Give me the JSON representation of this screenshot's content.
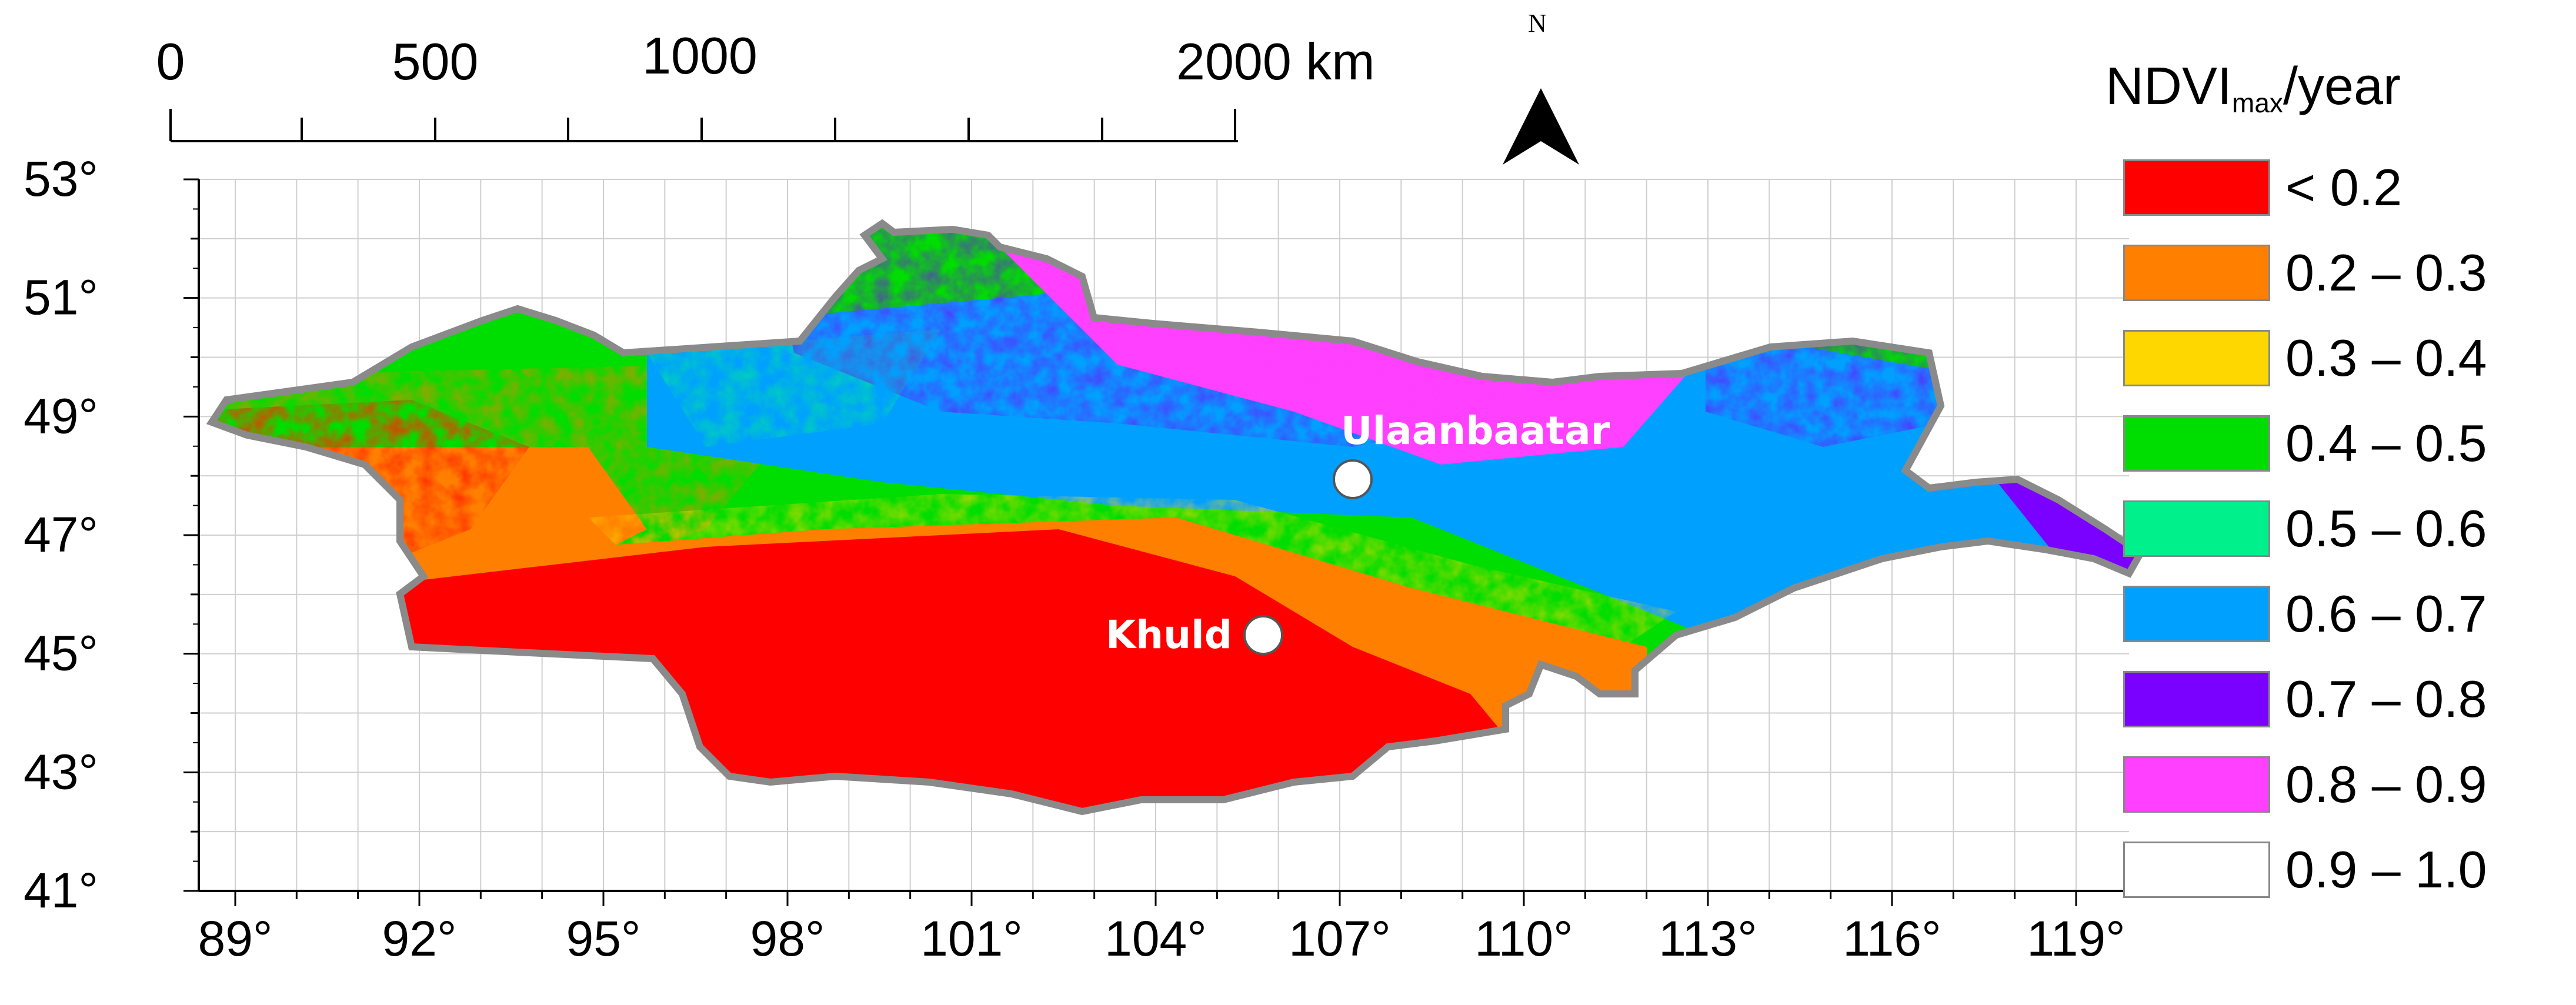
{
  "scale_bar": {
    "labels": [
      "0",
      "500",
      "1000",
      "2000 km"
    ]
  },
  "north_arrow": {
    "letter": "N"
  },
  "lat_labels": [
    "53°",
    "51°",
    "49°",
    "47°",
    "45°",
    "43°",
    "41°"
  ],
  "lon_labels": [
    "89°",
    "92°",
    "95°",
    "98°",
    "101°",
    "104°",
    "107°",
    "110°",
    "113°",
    "116°",
    "119°"
  ],
  "cities": [
    {
      "name": "Ulaanbaatar",
      "lon": 107.0,
      "lat": 47.9
    },
    {
      "name": "Khuld",
      "lon": 105.6,
      "lat": 45.2
    }
  ],
  "legend": {
    "title_main": "NDVI",
    "title_sub": "max",
    "title_suffix": "/year",
    "items": [
      {
        "label": "<  0.2",
        "color": "#ff0000"
      },
      {
        "label": "0.2 – 0.3",
        "color": "#ff7f00"
      },
      {
        "label": "0.3 – 0.4",
        "color": "#ffd700"
      },
      {
        "label": "0.4 – 0.5",
        "color": "#00dd00"
      },
      {
        "label": "0.5 – 0.6",
        "color": "#00f08c"
      },
      {
        "label": "0.6 – 0.7",
        "color": "#00a0ff"
      },
      {
        "label": "0.7 – 0.8",
        "color": "#7a00ff"
      },
      {
        "label": "0.8 – 0.9",
        "color": "#ff40ff"
      },
      {
        "label": "0.9 – 1.0",
        "color": "#ffffff"
      }
    ]
  },
  "colors": {
    "border": "#8a8a8a",
    "grid": "#cfcfcf",
    "frame": "#000000"
  }
}
